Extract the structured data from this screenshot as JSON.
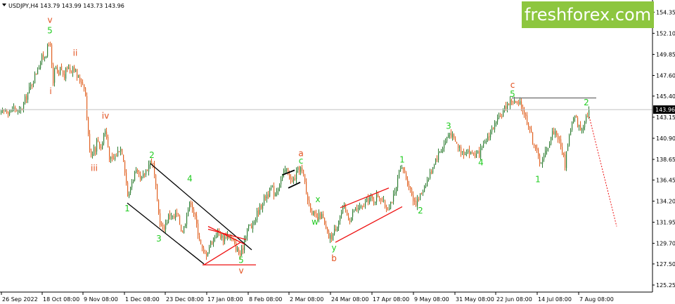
{
  "header": {
    "symbol_line": "USDJPY,H4  143.79 143.99 143.73 143.96"
  },
  "logo": {
    "text": "freshforex.com",
    "bg_color": "#8dc63f"
  },
  "price_marker": {
    "label": "143.96"
  },
  "colors": {
    "green": "#22cc22",
    "orange": "#e2501e",
    "red": "#ee1111",
    "black": "#000000",
    "bull_candle": "#2e7d32",
    "bear_candle": "#e06020"
  },
  "chart_data": {
    "type": "candlestick",
    "title": "",
    "xlabel": "",
    "ylabel": "",
    "ylim": [
      124.5,
      155.5
    ],
    "grid": false,
    "y_ticks": [
      "154.35",
      "152.10",
      "149.85",
      "147.60",
      "145.40",
      "143.15",
      "140.90",
      "138.65",
      "136.45",
      "134.20",
      "131.95",
      "129.70",
      "127.50",
      "125.25"
    ],
    "x_ticks": [
      "26 Sep 2022",
      "18 Oct 08:00",
      "9 Nov 08:00",
      "1 Dec 08:00",
      "23 Dec 08:00",
      "17 Jan 08:00",
      "8 Feb 08:00",
      "2 Mar 08:00",
      "24 Mar 08:00",
      "17 Apr 08:00",
      "9 May 08:00",
      "31 May 08:00",
      "22 Jun 08:00",
      "14 Jul 08:00",
      "7 Aug 08:00"
    ],
    "last_price": 143.96,
    "resistance_level": 145.2,
    "price_path": [
      [
        0,
        143.5
      ],
      [
        8,
        144.0
      ],
      [
        14,
        143.7
      ],
      [
        20,
        144.2
      ],
      [
        26,
        143.6
      ],
      [
        30,
        144.0
      ],
      [
        36,
        145.2
      ],
      [
        42,
        146.3
      ],
      [
        48,
        147.4
      ],
      [
        54,
        148.6
      ],
      [
        60,
        149.6
      ],
      [
        65,
        150.0
      ],
      [
        68,
        150.7
      ],
      [
        71,
        151.2
      ],
      [
        73,
        148.5
      ],
      [
        75,
        146.5
      ],
      [
        78,
        148.8
      ],
      [
        82,
        147.2
      ],
      [
        86,
        148.6
      ],
      [
        90,
        147.2
      ],
      [
        95,
        148.6
      ],
      [
        100,
        148.1
      ],
      [
        104,
        148.8
      ],
      [
        108,
        147.6
      ],
      [
        112,
        147.1
      ],
      [
        116,
        147.0
      ],
      [
        120,
        146.4
      ],
      [
        122,
        144.5
      ],
      [
        124,
        142.0
      ],
      [
        126,
        140.3
      ],
      [
        128,
        139.6
      ],
      [
        130,
        138.9
      ],
      [
        132,
        140.1
      ],
      [
        135,
        139.8
      ],
      [
        138,
        141.0
      ],
      [
        142,
        139.8
      ],
      [
        145,
        140.4
      ],
      [
        148,
        142.0
      ],
      [
        151,
        141.0
      ],
      [
        155,
        139.0
      ],
      [
        158,
        138.4
      ],
      [
        162,
        138.8
      ],
      [
        166,
        139.3
      ],
      [
        170,
        140.0
      ],
      [
        174,
        139.4
      ],
      [
        177,
        137.6
      ],
      [
        180,
        135.5
      ],
      [
        182,
        134.3
      ],
      [
        185,
        135.8
      ],
      [
        188,
        136.6
      ],
      [
        192,
        137.3
      ],
      [
        196,
        136.8
      ],
      [
        200,
        136.3
      ],
      [
        204,
        137.0
      ],
      [
        208,
        137.6
      ],
      [
        212,
        138.3
      ],
      [
        215,
        138.6
      ],
      [
        218,
        137.6
      ],
      [
        221,
        135.5
      ],
      [
        224,
        133.3
      ],
      [
        227,
        132.0
      ],
      [
        230,
        131.2
      ],
      [
        234,
        131.6
      ],
      [
        238,
        132.4
      ],
      [
        242,
        133.0
      ],
      [
        246,
        132.2
      ],
      [
        250,
        132.9
      ],
      [
        254,
        132.2
      ],
      [
        258,
        130.9
      ],
      [
        262,
        131.6
      ],
      [
        265,
        133.0
      ],
      [
        268,
        133.6
      ],
      [
        271,
        134.2
      ],
      [
        274,
        133.3
      ],
      [
        278,
        132.0
      ],
      [
        282,
        130.6
      ],
      [
        286,
        129.2
      ],
      [
        290,
        128.4
      ],
      [
        294,
        128.8
      ],
      [
        298,
        129.6
      ],
      [
        302,
        130.1
      ],
      [
        306,
        130.6
      ],
      [
        310,
        131.0
      ],
      [
        314,
        130.4
      ],
      [
        318,
        130.2
      ],
      [
        322,
        130.7
      ],
      [
        326,
        130.4
      ],
      [
        330,
        129.9
      ],
      [
        334,
        129.4
      ],
      [
        338,
        128.8
      ],
      [
        341,
        128.4
      ],
      [
        344,
        128.9
      ],
      [
        347,
        130.2
      ],
      [
        350,
        131.1
      ],
      [
        354,
        131.6
      ],
      [
        358,
        131.4
      ],
      [
        362,
        132.3
      ],
      [
        366,
        133.1
      ],
      [
        370,
        133.6
      ],
      [
        374,
        134.3
      ],
      [
        378,
        134.9
      ],
      [
        382,
        135.1
      ],
      [
        386,
        135.6
      ],
      [
        390,
        134.9
      ],
      [
        394,
        135.7
      ],
      [
        398,
        136.3
      ],
      [
        402,
        137.0
      ],
      [
        406,
        137.6
      ],
      [
        410,
        137.2
      ],
      [
        414,
        136.1
      ],
      [
        418,
        136.6
      ],
      [
        422,
        137.3
      ],
      [
        426,
        137.8
      ],
      [
        429,
        137.3
      ],
      [
        432,
        136.6
      ],
      [
        435,
        135.1
      ],
      [
        438,
        134.1
      ],
      [
        441,
        133.6
      ],
      [
        444,
        132.9
      ],
      [
        447,
        132.5
      ],
      [
        450,
        132.1
      ],
      [
        454,
        132.7
      ],
      [
        458,
        132.5
      ],
      [
        462,
        131.3
      ],
      [
        466,
        130.4
      ],
      [
        470,
        130.3
      ],
      [
        474,
        130.8
      ],
      [
        478,
        131.6
      ],
      [
        482,
        132.5
      ],
      [
        486,
        133.1
      ],
      [
        490,
        133.4
      ],
      [
        494,
        132.5
      ],
      [
        498,
        132.3
      ],
      [
        502,
        133.1
      ],
      [
        506,
        133.3
      ],
      [
        510,
        133.6
      ],
      [
        514,
        133.3
      ],
      [
        518,
        133.9
      ],
      [
        522,
        134.3
      ],
      [
        526,
        134.6
      ],
      [
        530,
        134.2
      ],
      [
        534,
        134.6
      ],
      [
        538,
        134.9
      ],
      [
        542,
        134.4
      ],
      [
        546,
        133.8
      ],
      [
        550,
        133.4
      ],
      [
        554,
        134.0
      ],
      [
        558,
        134.5
      ],
      [
        562,
        135.0
      ],
      [
        566,
        137.0
      ],
      [
        570,
        137.5
      ],
      [
        573,
        137.6
      ],
      [
        576,
        136.9
      ],
      [
        580,
        136.1
      ],
      [
        584,
        135.2
      ],
      [
        588,
        134.3
      ],
      [
        592,
        134.0
      ],
      [
        596,
        134.6
      ],
      [
        600,
        135.3
      ],
      [
        604,
        136.1
      ],
      [
        608,
        136.5
      ],
      [
        612,
        137.3
      ],
      [
        616,
        138.2
      ],
      [
        620,
        138.9
      ],
      [
        624,
        139.3
      ],
      [
        628,
        139.9
      ],
      [
        632,
        140.4
      ],
      [
        636,
        141.2
      ],
      [
        640,
        141.6
      ],
      [
        644,
        140.8
      ],
      [
        648,
        140.4
      ],
      [
        652,
        139.9
      ],
      [
        656,
        139.6
      ],
      [
        660,
        139.4
      ],
      [
        664,
        139.8
      ],
      [
        668,
        139.2
      ],
      [
        672,
        139.4
      ],
      [
        676,
        139.0
      ],
      [
        680,
        139.2
      ],
      [
        684,
        139.6
      ],
      [
        688,
        140.1
      ],
      [
        692,
        140.9
      ],
      [
        696,
        141.5
      ],
      [
        700,
        142.0
      ],
      [
        704,
        142.4
      ],
      [
        708,
        142.8
      ],
      [
        712,
        143.3
      ],
      [
        716,
        143.9
      ],
      [
        720,
        144.5
      ],
      [
        724,
        144.7
      ],
      [
        728,
        145.0
      ],
      [
        732,
        144.7
      ],
      [
        736,
        144.4
      ],
      [
        740,
        144.5
      ],
      [
        744,
        143.9
      ],
      [
        748,
        142.9
      ],
      [
        752,
        142.3
      ],
      [
        756,
        140.9
      ],
      [
        760,
        140.2
      ],
      [
        764,
        139.0
      ],
      [
        768,
        138.4
      ],
      [
        772,
        138.6
      ],
      [
        776,
        139.6
      ],
      [
        780,
        140.3
      ],
      [
        784,
        141.4
      ],
      [
        788,
        141.7
      ],
      [
        792,
        141.3
      ],
      [
        796,
        140.2
      ],
      [
        800,
        139.2
      ],
      [
        803,
        138.1
      ],
      [
        806,
        140.0
      ],
      [
        810,
        141.6
      ],
      [
        814,
        142.8
      ],
      [
        818,
        143.2
      ],
      [
        822,
        142.2
      ],
      [
        826,
        141.7
      ],
      [
        830,
        142.8
      ],
      [
        834,
        143.5
      ],
      [
        838,
        143.96
      ]
    ],
    "wave_labels": [
      {
        "text": "v",
        "color": "orange",
        "x": 71,
        "y": 153.5
      },
      {
        "text": "5",
        "color": "green",
        "x": 71,
        "y": 152.4
      },
      {
        "text": "ii",
        "color": "orange",
        "x": 107,
        "y": 150.0
      },
      {
        "text": "i",
        "color": "orange",
        "x": 72,
        "y": 145.9
      },
      {
        "text": "iv",
        "color": "orange",
        "x": 150,
        "y": 143.3
      },
      {
        "text": "iii",
        "color": "orange",
        "x": 134,
        "y": 137.7
      },
      {
        "text": "2",
        "color": "green",
        "x": 216,
        "y": 139.1
      },
      {
        "text": "4",
        "color": "green",
        "x": 270,
        "y": 136.6
      },
      {
        "text": "1",
        "color": "green",
        "x": 181,
        "y": 133.4
      },
      {
        "text": "3",
        "color": "green",
        "x": 226,
        "y": 130.2
      },
      {
        "text": "5",
        "color": "green",
        "x": 343,
        "y": 127.9
      },
      {
        "text": "v",
        "color": "orange",
        "x": 343,
        "y": 126.8
      },
      {
        "text": "a",
        "color": "orange",
        "x": 428,
        "y": 139.3
      },
      {
        "text": "c",
        "color": "green",
        "x": 428,
        "y": 138.5
      },
      {
        "text": "x",
        "color": "green",
        "x": 452,
        "y": 134.4
      },
      {
        "text": "w",
        "color": "green",
        "x": 448,
        "y": 132.0
      },
      {
        "text": "y",
        "color": "green",
        "x": 475,
        "y": 129.2
      },
      {
        "text": "b",
        "color": "orange",
        "x": 475,
        "y": 128.1
      },
      {
        "text": "1",
        "color": "green",
        "x": 572,
        "y": 138.6
      },
      {
        "text": "2",
        "color": "green",
        "x": 598,
        "y": 133.2
      },
      {
        "text": "3",
        "color": "green",
        "x": 638,
        "y": 142.2
      },
      {
        "text": "4",
        "color": "green",
        "x": 684,
        "y": 138.3
      },
      {
        "text": "c",
        "color": "orange",
        "x": 729,
        "y": 146.6
      },
      {
        "text": "5",
        "color": "green",
        "x": 729,
        "y": 145.6
      },
      {
        "text": "1",
        "color": "green",
        "x": 765,
        "y": 136.5
      },
      {
        "text": "2",
        "color": "green",
        "x": 834,
        "y": 144.7
      }
    ]
  }
}
